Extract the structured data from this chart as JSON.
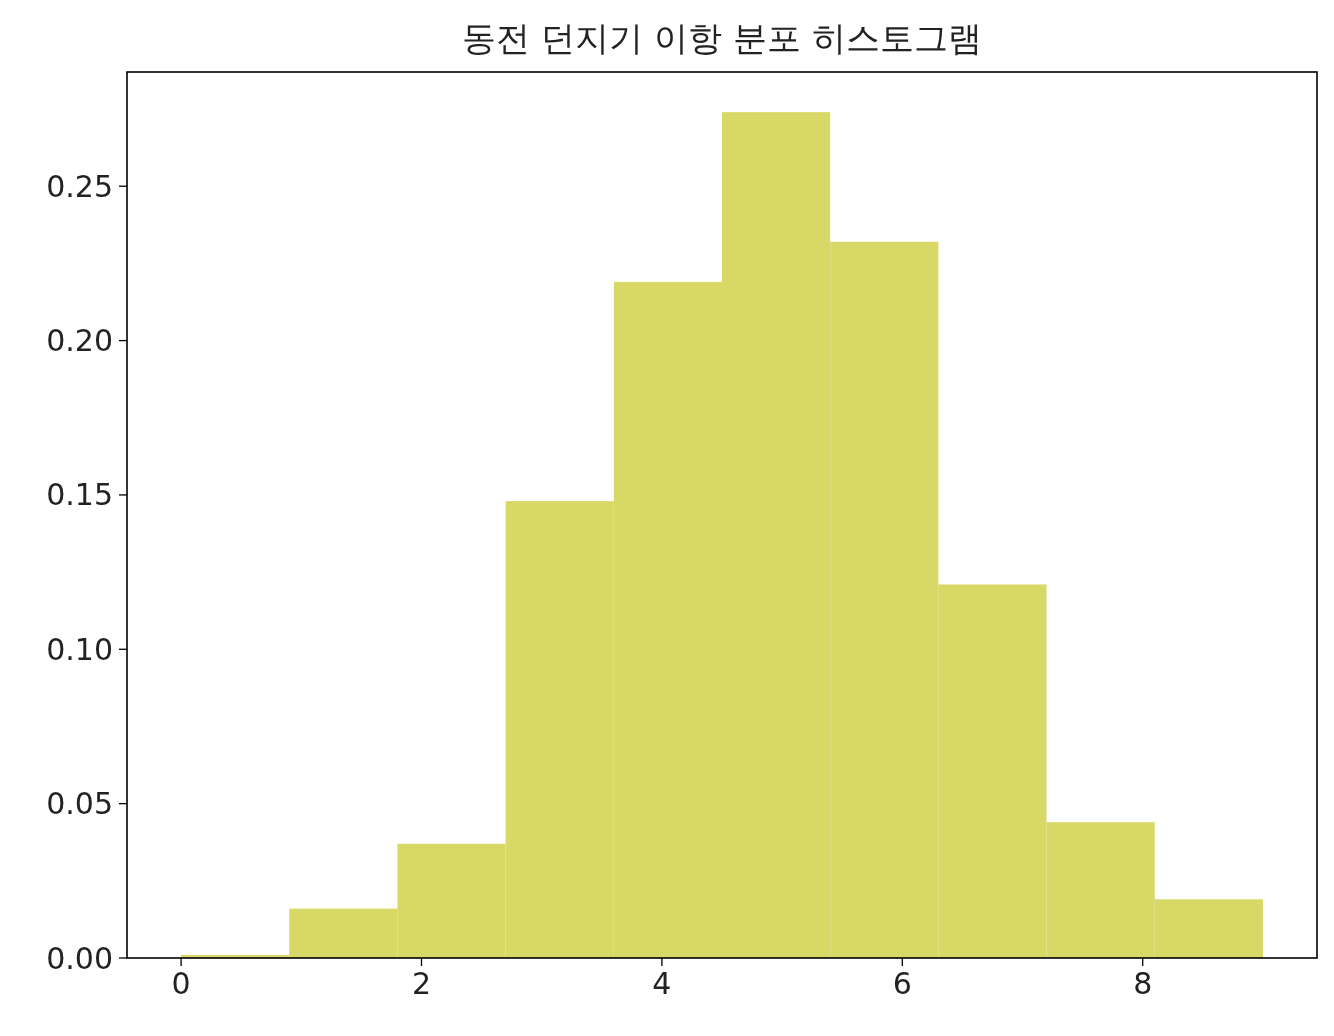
{
  "chart_data": {
    "type": "histogram",
    "title": "동전 던지기 이항 분포 히스토그램",
    "bins": [
      0,
      0.9,
      1.8,
      2.7,
      3.6,
      4.5,
      5.4,
      6.3,
      7.2,
      8.1,
      9
    ],
    "values": [
      0.001,
      0.016,
      0.037,
      0.148,
      0.219,
      0.274,
      0.232,
      0.121,
      0.044,
      0.019
    ],
    "color": "#d8d867",
    "xlim": [
      -0.45,
      9.45
    ],
    "xticks": [
      0,
      2,
      4,
      6,
      8
    ],
    "ylim": [
      0,
      0.287
    ],
    "yticks": [
      {
        "value": 0,
        "label": "0.00"
      },
      {
        "value": 0.05,
        "label": "0.05"
      },
      {
        "value": 0.1,
        "label": "0.10"
      },
      {
        "value": 0.15,
        "label": "0.15"
      },
      {
        "value": 0.2,
        "label": "0.20"
      },
      {
        "value": 0.25,
        "label": "0.25"
      }
    ],
    "grid": false
  }
}
